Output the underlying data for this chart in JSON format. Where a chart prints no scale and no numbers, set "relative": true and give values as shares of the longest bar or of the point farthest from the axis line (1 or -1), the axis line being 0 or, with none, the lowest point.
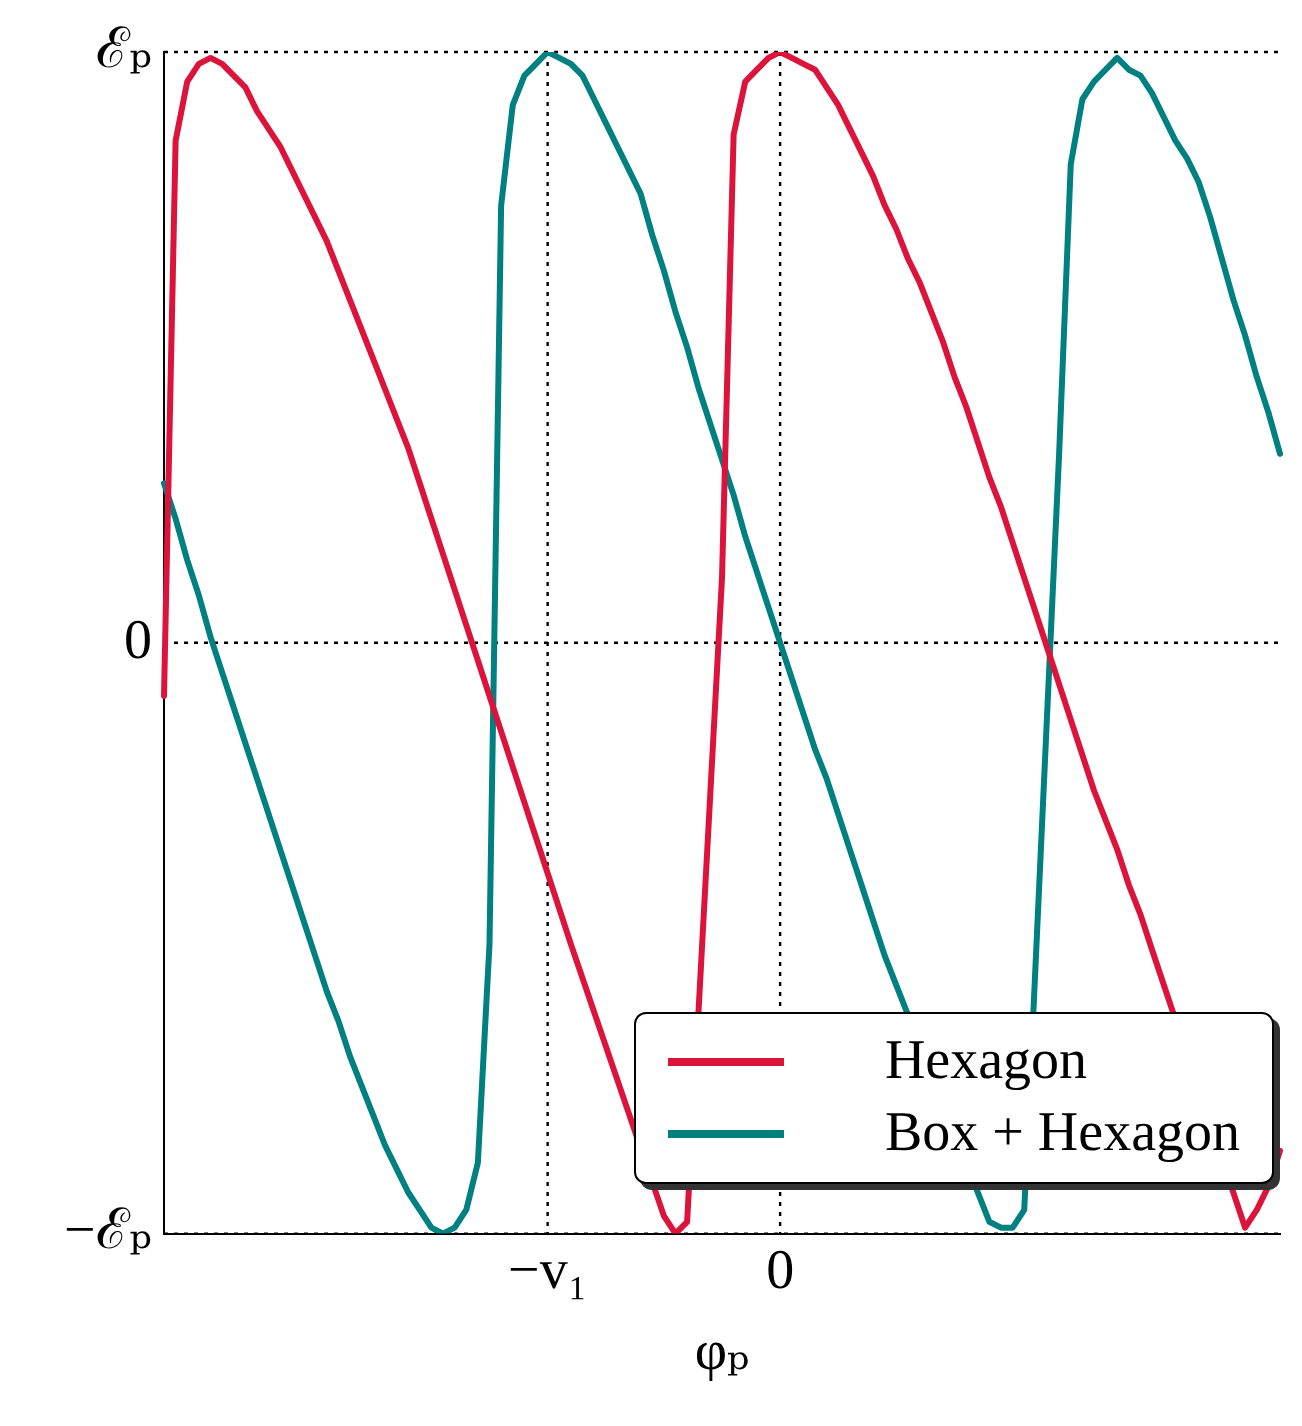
{
  "chart_data": {
    "type": "line",
    "xlabel": "φₚ",
    "relative": true,
    "categories": [
      null,
      null,
      null,
      null,
      null,
      null,
      null,
      null,
      null,
      null,
      null,
      null,
      null,
      null,
      null,
      null,
      null,
      null,
      null,
      null,
      null,
      null,
      null,
      null,
      null,
      null,
      null,
      null,
      null,
      null,
      null,
      null,
      null,
      "−v₁",
      null,
      null,
      null,
      null,
      null,
      null,
      null,
      null,
      null,
      null,
      null,
      null,
      null,
      null,
      null,
      null,
      null,
      null,
      null,
      "0",
      null,
      null,
      null,
      null,
      null,
      null,
      null,
      null,
      null,
      null,
      null,
      null,
      null,
      null,
      null,
      null,
      null,
      null,
      null,
      null,
      null,
      null,
      null,
      null,
      null,
      null,
      null,
      null,
      null,
      null,
      null,
      null,
      null,
      null,
      null,
      null,
      null,
      null,
      null,
      null,
      null,
      null,
      null
    ],
    "annotations": [
      "ℰₚ",
      "0",
      "−ℰₚ"
    ],
    "grid": true,
    "legend": "bottom right",
    "marker": "none",
    "line_style": "solid",
    "series": [
      {
        "name": "Hexagon",
        "color": "#dc143c",
        "values": [
          -0.09,
          0.85,
          0.95,
          0.98,
          0.99,
          0.98,
          0.96,
          0.94,
          0.9,
          0.87,
          0.84,
          0.8,
          0.76,
          0.72,
          0.68,
          0.63,
          0.58,
          0.53,
          0.48,
          0.43,
          0.38,
          0.33,
          0.27,
          0.21,
          0.15,
          0.09,
          0.03,
          -0.03,
          -0.09,
          -0.15,
          -0.21,
          -0.27,
          -0.33,
          -0.39,
          -0.45,
          -0.51,
          null,
          null,
          null,
          null,
          null,
          null,
          null,
          -0.97,
          -1,
          -0.98,
          null,
          null,
          0.11,
          0.86,
          0.95,
          0.97,
          0.99,
          1,
          0.99,
          0.98,
          0.97,
          0.94,
          0.91,
          0.87,
          0.83,
          0.79,
          0.74,
          0.7,
          0.65,
          0.61,
          0.56,
          0.51,
          0.45,
          0.4,
          0.34,
          0.28,
          0.23,
          0.17,
          0.11,
          0.05,
          -0.01,
          -0.07,
          -0.13,
          -0.19,
          -0.25,
          -0.3,
          -0.35,
          -0.41,
          -0.46,
          -0.52,
          null,
          null,
          null,
          null,
          null,
          null,
          null,
          -0.99,
          -0.96,
          -0.92,
          -0.86
        ]
      },
      {
        "name": "Box + Hexagon",
        "color": "#008080",
        "values": [
          0.27,
          0.21,
          0.14,
          0.08,
          0.01,
          -0.05,
          -0.11,
          -0.17,
          -0.23,
          -0.29,
          -0.35,
          -0.41,
          -0.47,
          -0.53,
          -0.59,
          -0.64,
          -0.7,
          -0.75,
          -0.8,
          -0.85,
          -0.89,
          -0.93,
          -0.96,
          -0.99,
          -1,
          -0.99,
          -0.96,
          -0.88,
          -0.51,
          0.74,
          0.91,
          0.96,
          0.98,
          1,
          0.99,
          0.98,
          0.96,
          0.92,
          0.88,
          0.84,
          0.8,
          0.76,
          0.69,
          0.63,
          0.56,
          0.5,
          0.43,
          0.37,
          0.31,
          0.25,
          0.18,
          0.12,
          0.06,
          0,
          -0.06,
          -0.12,
          -0.18,
          -0.23,
          -0.29,
          -0.35,
          -0.41,
          -0.47,
          -0.53,
          null,
          null,
          null,
          null,
          null,
          null,
          null,
          null,
          -0.98,
          -0.99,
          -0.99,
          -0.96,
          null,
          null,
          0.32,
          0.81,
          0.92,
          0.95,
          0.97,
          0.99,
          0.97,
          0.96,
          0.93,
          0.89,
          0.85,
          0.82,
          0.78,
          0.72,
          0.65,
          0.58,
          0.52,
          0.45,
          0.39,
          0.32
        ]
      }
    ]
  }
}
